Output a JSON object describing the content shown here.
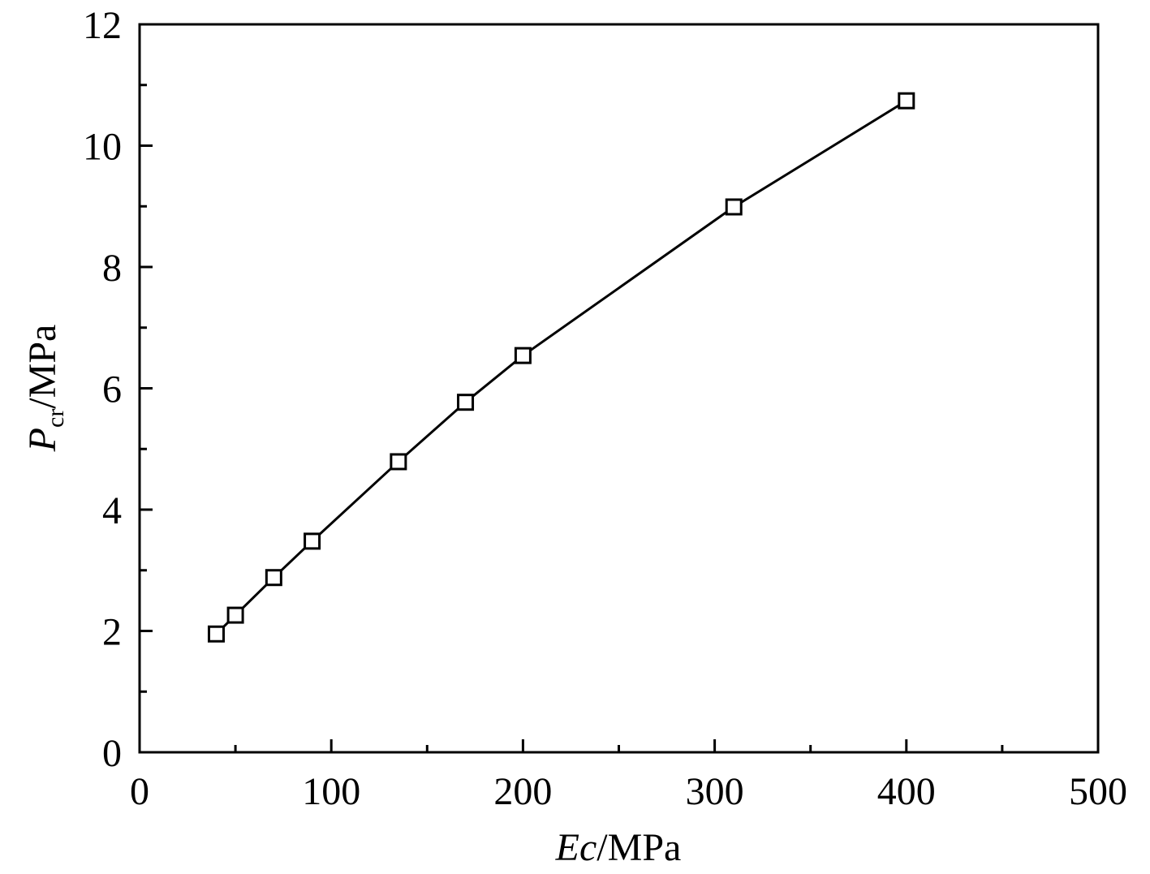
{
  "chart_data": {
    "type": "line",
    "xlabel": {
      "symbol": "Ec",
      "unit": "/MPa"
    },
    "ylabel": {
      "symbol": "P",
      "subscript": "cr",
      "unit": "/MPa"
    },
    "x": [
      40,
      50,
      70,
      90,
      135,
      170,
      200,
      310,
      400
    ],
    "series": [
      {
        "color": "#000000",
        "marker": "square",
        "values": [
          1.95,
          2.26,
          2.88,
          3.48,
          4.79,
          5.77,
          6.54,
          8.99,
          10.74
        ]
      }
    ],
    "xlim": [
      0,
      500
    ],
    "xticks": [
      0,
      100,
      200,
      300,
      400,
      500
    ],
    "xminorticks": [
      50,
      150,
      250,
      350,
      450
    ],
    "ylim": [
      0,
      12
    ],
    "yticks": [
      0,
      2,
      4,
      6,
      8,
      10,
      12
    ],
    "yminorticks": [
      1,
      3,
      5,
      7,
      9,
      11
    ],
    "grid": false
  }
}
